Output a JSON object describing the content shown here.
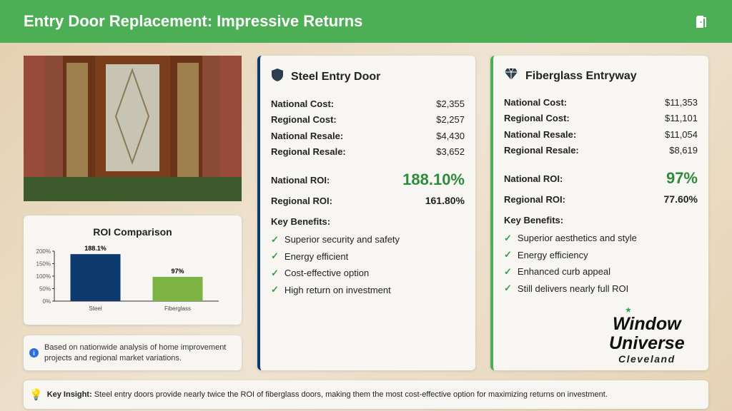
{
  "header": {
    "title": "Entry Door Replacement: Impressive Returns",
    "icon": "door-open-icon"
  },
  "chart_data": {
    "type": "bar",
    "title": "ROI Comparison",
    "categories": [
      "Steel",
      "Fiberglass"
    ],
    "values": [
      188.1,
      97
    ],
    "data_labels": [
      "188.1%",
      "97%"
    ],
    "ylim": [
      0,
      200
    ],
    "yticks": [
      "0%",
      "50%",
      "100%",
      "150%",
      "200%"
    ],
    "colors": [
      "#0d3a6e",
      "#7cb342"
    ]
  },
  "info": {
    "text": "Based on nationwide analysis of home improvement projects and regional market variations."
  },
  "steel": {
    "title": "Steel Entry Door",
    "icon": "shield-icon",
    "accent": "#0d3a6e",
    "rows": [
      {
        "label": "National Cost:",
        "value": "$2,355"
      },
      {
        "label": "Regional Cost:",
        "value": "$2,257"
      },
      {
        "label": "National Resale:",
        "value": "$4,430"
      },
      {
        "label": "Regional Resale:",
        "value": "$3,652"
      }
    ],
    "national_roi_label": "National ROI:",
    "national_roi": "188.10%",
    "regional_roi_label": "Regional ROI:",
    "regional_roi": "161.80%",
    "benefits_label": "Key Benefits:",
    "benefits": [
      "Superior security and safety",
      "Energy efficient",
      "Cost-effective option",
      "High return on investment"
    ]
  },
  "fiber": {
    "title": "Fiberglass Entryway",
    "icon": "gem-icon",
    "accent": "#4cae55",
    "rows": [
      {
        "label": "National Cost:",
        "value": "$11,353"
      },
      {
        "label": "Regional Cost:",
        "value": "$11,101"
      },
      {
        "label": "National Resale:",
        "value": "$11,054"
      },
      {
        "label": "Regional Resale:",
        "value": "$8,619"
      }
    ],
    "national_roi_label": "National ROI:",
    "national_roi": "97%",
    "regional_roi_label": "Regional ROI:",
    "regional_roi": "77.60%",
    "benefits_label": "Key Benefits:",
    "benefits": [
      "Superior aesthetics and style",
      "Energy efficiency",
      "Enhanced curb appeal",
      "Still delivers nearly full ROI"
    ]
  },
  "logo": {
    "line1": "Window",
    "line2": "Universe",
    "line3": "Cleveland"
  },
  "insight": {
    "label": "Key Insight:",
    "text": " Steel entry doors provide nearly twice the ROI of fiberglass doors, making them the most cost-effective option for maximizing returns on investment."
  }
}
